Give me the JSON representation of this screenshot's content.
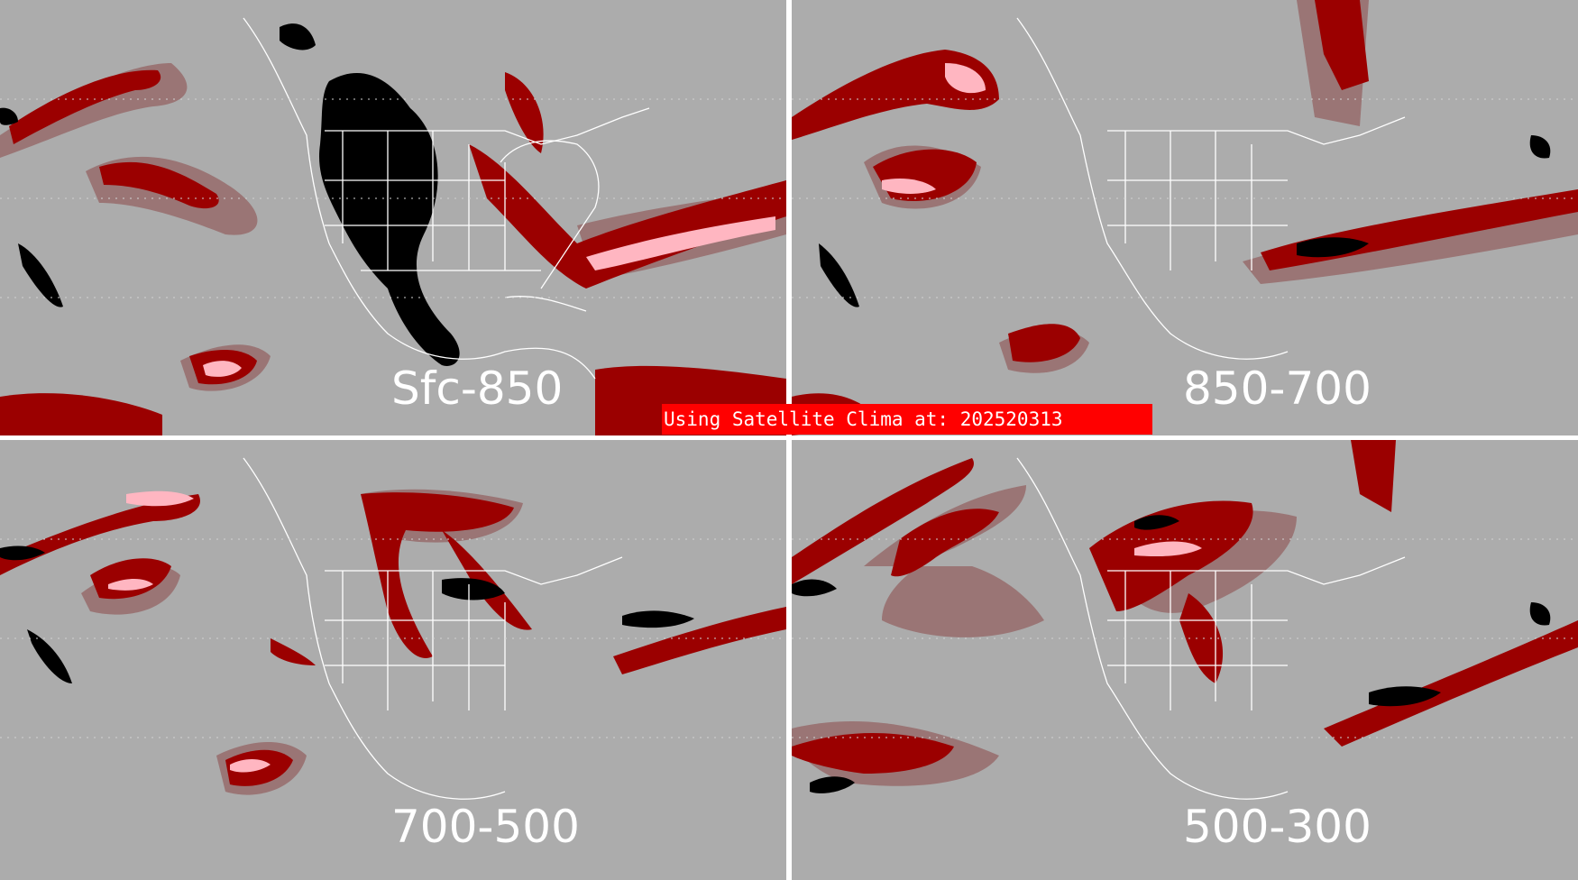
{
  "panels": [
    {
      "label": "Sfc-850"
    },
    {
      "label": "850-700"
    },
    {
      "label": "700-500"
    },
    {
      "label": "500-300"
    }
  ],
  "banner": "Using Satellite Clima at: 202520313",
  "colors": {
    "background": "#acacac",
    "dry_brown": "#9a7575",
    "moist_dark_red": "#9b0000",
    "very_moist_pink": "#ffb6c1",
    "terrain_black": "#000000",
    "coast_and_borders": "#ffffff",
    "divider": "#ffffff",
    "banner": "#ff0000"
  }
}
